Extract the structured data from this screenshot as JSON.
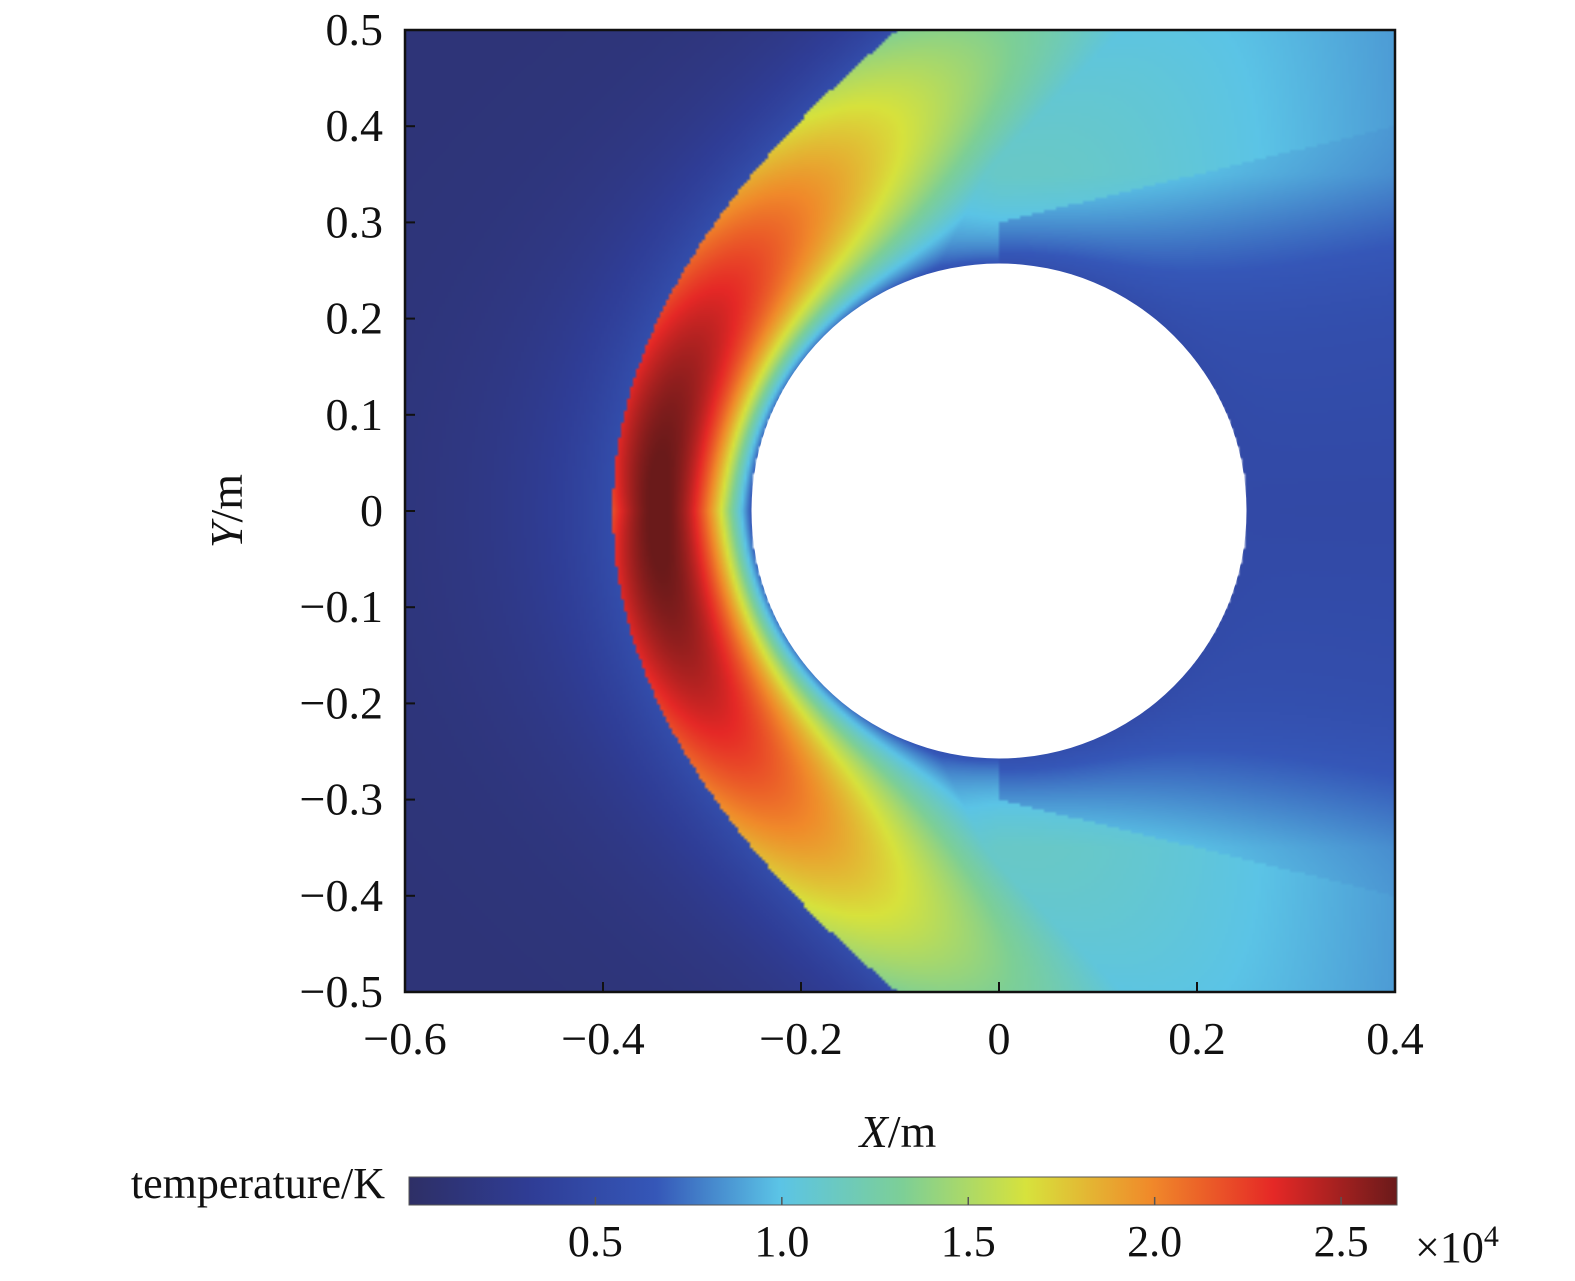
{
  "chart_data": {
    "type": "heatmap",
    "title": "",
    "xlabel": "X/m",
    "xlabel_parts": {
      "var": "X",
      "unit": "/m"
    },
    "ylabel": "Y/m",
    "ylabel_parts": {
      "var": "Y",
      "unit": "/m"
    },
    "xlim": [
      -0.6,
      0.4
    ],
    "ylim": [
      -0.5,
      0.5
    ],
    "x_ticks": [
      -0.6,
      -0.4,
      -0.2,
      0,
      0.2,
      0.4
    ],
    "x_tick_labels": [
      "−0.6",
      "−0.4",
      "−0.2",
      "0",
      "0.2",
      "0.4"
    ],
    "y_ticks": [
      0.5,
      0.4,
      0.3,
      0.2,
      0.1,
      0,
      -0.1,
      -0.2,
      -0.3,
      -0.4,
      -0.5
    ],
    "y_tick_labels": [
      "0.5",
      "0.4",
      "0.3",
      "0.2",
      "0.1",
      "0",
      "−0.1",
      "−0.2",
      "−0.3",
      "−0.4",
      "−0.5"
    ],
    "grid": false,
    "colorbar": {
      "title": "temperature/K",
      "orientation": "horizontal",
      "placement": "bottom",
      "range": [
        0,
        26500
      ],
      "ticks": [
        5000,
        10000,
        15000,
        20000,
        25000
      ],
      "tick_labels": [
        "0.5",
        "1.0",
        "1.5",
        "2.0",
        "2.5"
      ],
      "multiplier": "×10",
      "multiplier_exponent": "4",
      "colormap": "jet",
      "stops": [
        "#2e2f66",
        "#2f3d96",
        "#3557b8",
        "#5bc4e6",
        "#7dcf96",
        "#d7e23c",
        "#f08a2a",
        "#e52826",
        "#6a1a1a"
      ]
    },
    "field": {
      "quantity": "temperature",
      "freestream_temperature": 300,
      "peak_temperature": 26000,
      "shock_standoff_x": -0.39,
      "body": {
        "shape": "circle",
        "center": [
          0,
          0
        ],
        "radius": 0.25,
        "fill": "#ffffff"
      }
    }
  }
}
